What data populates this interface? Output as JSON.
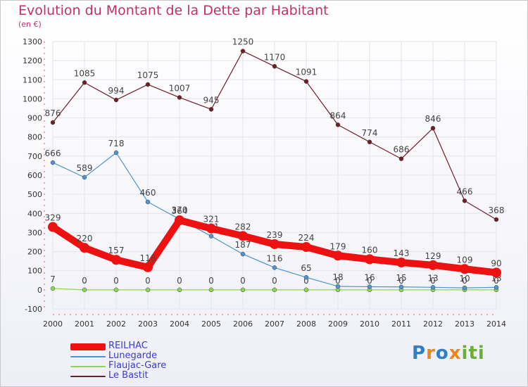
{
  "header": {
    "title": "Evolution du Montant de la Dette par Habitant",
    "subtitle": "(en €)"
  },
  "brand": {
    "text": "Proxiti"
  },
  "colors": {
    "REILHAC": "#ee1111",
    "Lunegarde": "#4d93cf",
    "Flaujac-Gare": "#8fd35a",
    "Le Bastit": "#6e1e25",
    "grid": "#e4e4ea",
    "axis_text": "#333333"
  },
  "chart_data": {
    "type": "line",
    "title": "Evolution du Montant de la Dette par Habitant",
    "subtitle": "(en €)",
    "x": [
      2000,
      2001,
      2002,
      2003,
      2004,
      2005,
      2006,
      2007,
      2008,
      2009,
      2010,
      2011,
      2012,
      2013,
      2014
    ],
    "ylim": [
      -100,
      1300
    ],
    "yticks": [
      -100,
      0,
      100,
      200,
      300,
      400,
      500,
      600,
      700,
      800,
      900,
      1000,
      1100,
      1200,
      1300
    ],
    "grid": true,
    "legend_position": "bottom-left",
    "series": [
      {
        "name": "REILHAC",
        "values": [
          329,
          220,
          157,
          118,
          364,
          321,
          282,
          239,
          224,
          179,
          160,
          143,
          129,
          109,
          90
        ],
        "labels": [
          "329",
          "220",
          "157",
          "118",
          "364",
          "321",
          "282",
          "239",
          "224",
          "179",
          "160",
          "143",
          "129",
          "109",
          "90"
        ]
      },
      {
        "name": "Lunegarde",
        "values": [
          666,
          589,
          718,
          460,
          370,
          281,
          187,
          116,
          65,
          18,
          16,
          15,
          13,
          10,
          13
        ],
        "labels": [
          "666",
          "589",
          "718",
          "460",
          "370",
          "281",
          "187",
          "116",
          "65",
          "18",
          "16",
          "15",
          "13",
          "10",
          "13"
        ]
      },
      {
        "name": "Flaujac-Gare",
        "values": [
          7,
          0,
          0,
          0,
          0,
          0,
          0,
          0,
          0,
          0,
          0,
          0,
          0,
          0,
          0
        ],
        "labels": [
          "7",
          "0",
          "0",
          "0",
          "0",
          "0",
          "0",
          "0",
          "0",
          "0",
          "0",
          "0",
          "0",
          "0",
          "0"
        ]
      },
      {
        "name": "Le Bastit",
        "values": [
          876,
          1085,
          994,
          1075,
          1007,
          945,
          1250,
          1170,
          1091,
          864,
          774,
          686,
          846,
          466,
          368
        ],
        "labels": [
          "876",
          "1085",
          "994",
          "1075",
          "1007",
          "945",
          "1250",
          "1170",
          "1091",
          "864",
          "774",
          "686",
          "846",
          "466",
          "368"
        ]
      }
    ]
  },
  "legend": [
    {
      "label": "REILHAC",
      "color": "#ee1111"
    },
    {
      "label": "Lunegarde",
      "color": "#4d93cf"
    },
    {
      "label": "Flaujac-Gare",
      "color": "#8fd35a"
    },
    {
      "label": "Le Bastit",
      "color": "#6e1e25"
    }
  ]
}
